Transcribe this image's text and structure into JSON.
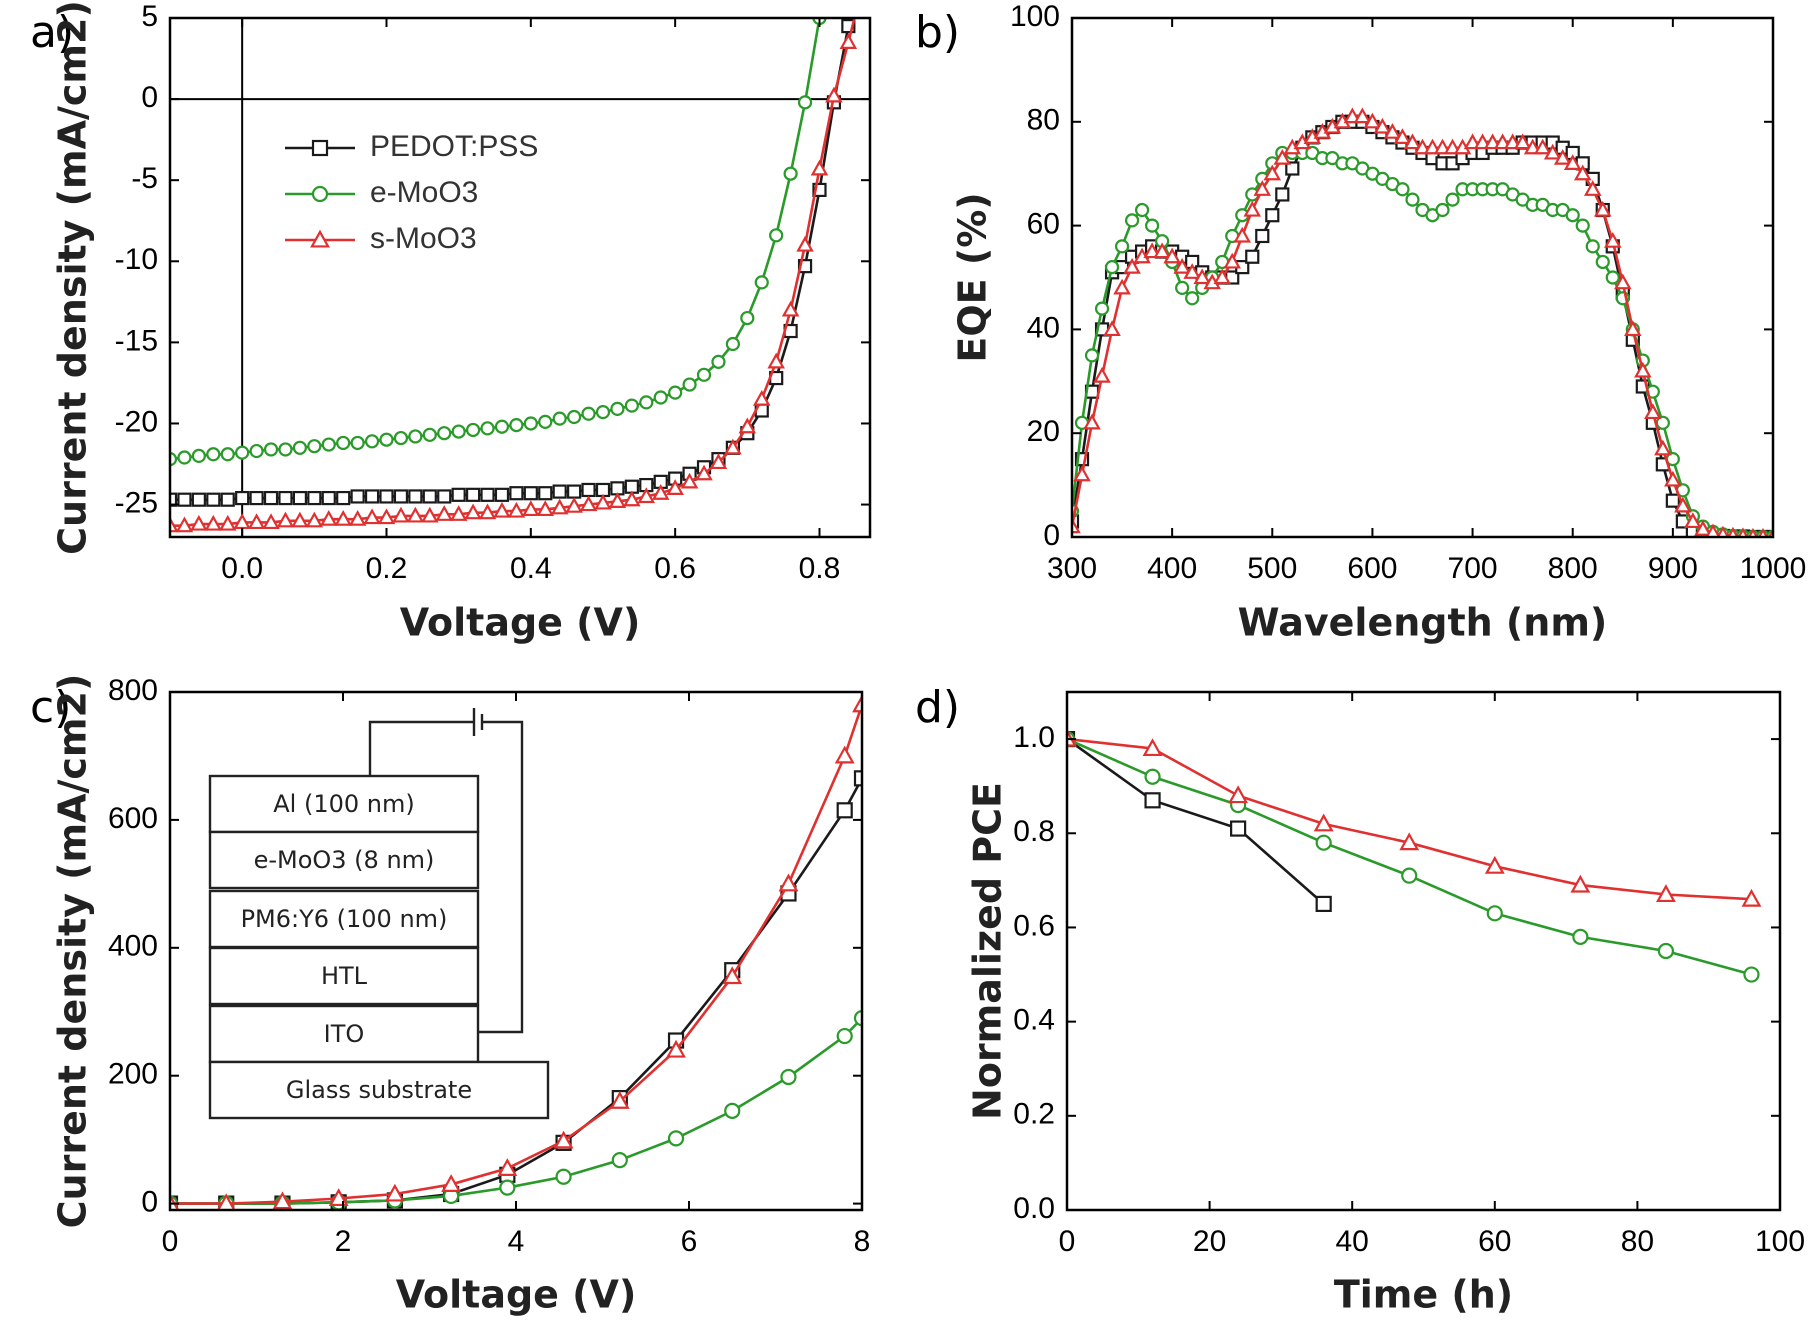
{
  "colors": {
    "black": "#1a1a1a",
    "green": "#2a9a2a",
    "red": "#e03030"
  },
  "chart_data": [
    {
      "panel": "a)",
      "type": "line",
      "xlabel": "Voltage (V)",
      "ylabel": "Current density (mA/cm2)",
      "ylabel_sup": "2",
      "xlim": [
        -0.1,
        0.87
      ],
      "ylim": [
        -27,
        5
      ],
      "xticks": [
        0.0,
        0.2,
        0.4,
        0.6,
        0.8
      ],
      "xtick_labels": [
        "0.0",
        "0.2",
        "0.4",
        "0.6",
        "0.8"
      ],
      "yticks": [
        5,
        0,
        -5,
        -10,
        -15,
        -20,
        -25
      ],
      "ytick_labels": [
        "5",
        "0",
        "-5",
        "-10",
        "-15",
        "-20",
        "-25"
      ],
      "zero_lines": true,
      "legend": {
        "placement": "upper-left"
      },
      "series": [
        {
          "name": "PEDOT:PSS",
          "color": "black",
          "marker": "square",
          "x": [
            -0.1,
            -0.08,
            -0.06,
            -0.04,
            -0.02,
            0.0,
            0.02,
            0.04,
            0.06,
            0.08,
            0.1,
            0.12,
            0.14,
            0.16,
            0.18,
            0.2,
            0.22,
            0.24,
            0.26,
            0.28,
            0.3,
            0.32,
            0.34,
            0.36,
            0.38,
            0.4,
            0.42,
            0.44,
            0.46,
            0.48,
            0.5,
            0.52,
            0.54,
            0.56,
            0.58,
            0.6,
            0.62,
            0.64,
            0.66,
            0.68,
            0.7,
            0.72,
            0.74,
            0.76,
            0.78,
            0.8,
            0.82,
            0.84,
            0.86
          ],
          "y": [
            -24.7,
            -24.7,
            -24.7,
            -24.7,
            -24.7,
            -24.6,
            -24.6,
            -24.6,
            -24.6,
            -24.6,
            -24.6,
            -24.6,
            -24.6,
            -24.5,
            -24.5,
            -24.5,
            -24.5,
            -24.5,
            -24.5,
            -24.5,
            -24.4,
            -24.4,
            -24.4,
            -24.4,
            -24.3,
            -24.3,
            -24.3,
            -24.2,
            -24.2,
            -24.1,
            -24.1,
            -24.0,
            -23.9,
            -23.8,
            -23.6,
            -23.4,
            -23.1,
            -22.7,
            -22.2,
            -21.5,
            -20.6,
            -19.2,
            -17.2,
            -14.3,
            -10.3,
            -5.6,
            -0.2,
            4.5,
            8.0
          ]
        },
        {
          "name": "e-MoO3",
          "color": "green",
          "marker": "circle",
          "x": [
            -0.1,
            -0.08,
            -0.06,
            -0.04,
            -0.02,
            0.0,
            0.02,
            0.04,
            0.06,
            0.08,
            0.1,
            0.12,
            0.14,
            0.16,
            0.18,
            0.2,
            0.22,
            0.24,
            0.26,
            0.28,
            0.3,
            0.32,
            0.34,
            0.36,
            0.38,
            0.4,
            0.42,
            0.44,
            0.46,
            0.48,
            0.5,
            0.52,
            0.54,
            0.56,
            0.58,
            0.6,
            0.62,
            0.64,
            0.66,
            0.68,
            0.7,
            0.72,
            0.74,
            0.76,
            0.78,
            0.8
          ],
          "y": [
            -22.2,
            -22.1,
            -22.0,
            -21.9,
            -21.9,
            -21.8,
            -21.7,
            -21.6,
            -21.6,
            -21.5,
            -21.4,
            -21.3,
            -21.2,
            -21.2,
            -21.1,
            -21.0,
            -20.9,
            -20.8,
            -20.7,
            -20.6,
            -20.5,
            -20.4,
            -20.3,
            -20.2,
            -20.1,
            -20.0,
            -19.9,
            -19.7,
            -19.6,
            -19.4,
            -19.3,
            -19.1,
            -18.9,
            -18.7,
            -18.4,
            -18.1,
            -17.6,
            -17.0,
            -16.2,
            -15.1,
            -13.5,
            -11.3,
            -8.4,
            -4.6,
            -0.2,
            5.0
          ]
        },
        {
          "name": "s-MoO3",
          "color": "red",
          "marker": "triangle",
          "x": [
            -0.1,
            -0.08,
            -0.06,
            -0.04,
            -0.02,
            0.0,
            0.02,
            0.04,
            0.06,
            0.08,
            0.1,
            0.12,
            0.14,
            0.16,
            0.18,
            0.2,
            0.22,
            0.24,
            0.26,
            0.28,
            0.3,
            0.32,
            0.34,
            0.36,
            0.38,
            0.4,
            0.42,
            0.44,
            0.46,
            0.48,
            0.5,
            0.52,
            0.54,
            0.56,
            0.58,
            0.6,
            0.62,
            0.64,
            0.66,
            0.68,
            0.7,
            0.72,
            0.74,
            0.76,
            0.78,
            0.8,
            0.82,
            0.84,
            0.86
          ],
          "y": [
            -26.3,
            -26.3,
            -26.2,
            -26.2,
            -26.2,
            -26.1,
            -26.1,
            -26.1,
            -26.0,
            -26.0,
            -26.0,
            -25.9,
            -25.9,
            -25.9,
            -25.8,
            -25.8,
            -25.7,
            -25.7,
            -25.7,
            -25.6,
            -25.6,
            -25.5,
            -25.5,
            -25.4,
            -25.4,
            -25.3,
            -25.3,
            -25.2,
            -25.1,
            -25.0,
            -24.9,
            -24.8,
            -24.7,
            -24.5,
            -24.3,
            -24.0,
            -23.6,
            -23.1,
            -22.4,
            -21.5,
            -20.2,
            -18.5,
            -16.2,
            -13.0,
            -9.0,
            -4.3,
            0.2,
            3.5,
            7.0
          ]
        }
      ]
    },
    {
      "panel": "b)",
      "type": "line",
      "xlabel": "Wavelength (nm)",
      "ylabel": "EQE (%)",
      "xlim": [
        300,
        1000
      ],
      "ylim": [
        0,
        100
      ],
      "xticks": [
        300,
        400,
        500,
        600,
        700,
        800,
        900,
        1000
      ],
      "xtick_labels": [
        "300",
        "400",
        "500",
        "600",
        "700",
        "800",
        "900",
        "1000"
      ],
      "yticks": [
        0,
        20,
        40,
        60,
        80,
        100
      ],
      "ytick_labels": [
        "0",
        "20",
        "40",
        "60",
        "80",
        "100"
      ],
      "series": [
        {
          "name": "PEDOT:PSS",
          "color": "black",
          "marker": "square",
          "x": [
            300,
            310,
            320,
            330,
            340,
            350,
            360,
            370,
            380,
            390,
            400,
            410,
            420,
            430,
            440,
            450,
            460,
            470,
            480,
            490,
            500,
            510,
            520,
            530,
            540,
            550,
            560,
            570,
            580,
            590,
            600,
            610,
            620,
            630,
            640,
            650,
            660,
            670,
            680,
            690,
            700,
            710,
            720,
            730,
            740,
            750,
            760,
            770,
            780,
            790,
            800,
            810,
            820,
            830,
            840,
            850,
            860,
            870,
            880,
            890,
            900,
            910,
            920,
            930,
            940,
            950,
            960,
            970,
            980,
            990,
            1000
          ],
          "y": [
            3,
            15,
            28,
            40,
            51,
            52,
            54,
            55,
            56,
            55,
            55,
            54,
            53,
            51,
            50,
            50,
            50,
            52,
            54,
            58,
            62,
            66,
            71,
            75,
            77,
            78,
            79,
            80,
            80,
            80,
            79,
            78,
            77,
            76,
            75,
            74,
            73,
            72,
            72,
            73,
            74,
            74,
            75,
            75,
            75,
            76,
            76,
            76,
            76,
            75,
            74,
            72,
            69,
            63,
            56,
            47,
            38,
            29,
            22,
            14,
            7,
            3,
            1,
            0.5,
            0.3,
            0.2,
            0.1,
            0.1,
            0,
            0,
            0
          ]
        },
        {
          "name": "e-MoO3",
          "color": "green",
          "marker": "circle",
          "x": [
            300,
            310,
            320,
            330,
            340,
            350,
            360,
            370,
            380,
            390,
            400,
            410,
            420,
            430,
            440,
            450,
            460,
            470,
            480,
            490,
            500,
            510,
            520,
            530,
            540,
            550,
            560,
            570,
            580,
            590,
            600,
            610,
            620,
            630,
            640,
            650,
            660,
            670,
            680,
            690,
            700,
            710,
            720,
            730,
            740,
            750,
            760,
            770,
            780,
            790,
            800,
            810,
            820,
            830,
            840,
            850,
            860,
            870,
            880,
            890,
            900,
            910,
            920,
            930,
            940,
            950,
            960,
            970,
            980,
            990,
            1000
          ],
          "y": [
            5,
            22,
            35,
            44,
            52,
            56,
            61,
            63,
            60,
            57,
            53,
            48,
            46,
            48,
            50,
            53,
            58,
            62,
            66,
            69,
            72,
            74,
            74,
            74,
            74,
            73,
            73,
            72,
            72,
            71,
            70,
            69,
            68,
            67,
            65,
            63,
            62,
            63,
            65,
            67,
            67,
            67,
            67,
            67,
            66,
            65,
            64,
            64,
            63,
            63,
            62,
            60,
            56,
            53,
            50,
            46,
            40,
            34,
            28,
            22,
            15,
            9,
            4,
            2,
            1,
            0.5,
            0.2,
            0.1,
            0,
            0,
            0
          ]
        },
        {
          "name": "s-MoO3",
          "color": "red",
          "marker": "triangle",
          "x": [
            300,
            310,
            320,
            330,
            340,
            350,
            360,
            370,
            380,
            390,
            400,
            410,
            420,
            430,
            440,
            450,
            460,
            470,
            480,
            490,
            500,
            510,
            520,
            530,
            540,
            550,
            560,
            570,
            580,
            590,
            600,
            610,
            620,
            630,
            640,
            650,
            660,
            670,
            680,
            690,
            700,
            710,
            720,
            730,
            740,
            750,
            760,
            770,
            780,
            790,
            800,
            810,
            820,
            830,
            840,
            850,
            860,
            870,
            880,
            890,
            900,
            910,
            920,
            930,
            940,
            950,
            960,
            970,
            980,
            990,
            1000
          ],
          "y": [
            2,
            12,
            22,
            31,
            40,
            48,
            52,
            54,
            55,
            55,
            54,
            52,
            51,
            50,
            49,
            50,
            53,
            58,
            63,
            67,
            70,
            73,
            75,
            76,
            77,
            78,
            79,
            80,
            81,
            81,
            80,
            79,
            78,
            77,
            76,
            75,
            75,
            75,
            75,
            75,
            76,
            76,
            76,
            76,
            76,
            76,
            75,
            75,
            74,
            73,
            72,
            70,
            67,
            63,
            57,
            49,
            40,
            32,
            24,
            17,
            11,
            6,
            3,
            1.5,
            0.8,
            0.4,
            0.2,
            0.1,
            0,
            0,
            0
          ]
        }
      ]
    },
    {
      "panel": "c)",
      "type": "line",
      "xlabel": "Voltage (V)",
      "ylabel": "Current density (mA/cm2)",
      "ylabel_sup": "2",
      "xlim": [
        0,
        8
      ],
      "ylim": [
        -10,
        800
      ],
      "xticks": [
        0,
        2,
        4,
        6,
        8
      ],
      "xtick_labels": [
        "0",
        "2",
        "4",
        "6",
        "8"
      ],
      "yticks": [
        0,
        200,
        400,
        600,
        800
      ],
      "ytick_labels": [
        "0",
        "200",
        "400",
        "600",
        "800"
      ],
      "device_stack": {
        "layers": [
          "Al (100 nm)",
          "e-MoO3 (8 nm)",
          "PM6:Y6 (100 nm)",
          "HTL",
          "ITO",
          "Glass substrate"
        ]
      },
      "series": [
        {
          "name": "PEDOT:PSS",
          "color": "black",
          "marker": "square",
          "x": [
            0,
            0.65,
            1.3,
            1.95,
            2.6,
            3.25,
            3.9,
            4.55,
            5.2,
            5.85,
            6.5,
            7.15,
            7.8,
            8.0
          ],
          "y": [
            0,
            0,
            0,
            2,
            5,
            15,
            45,
            95,
            165,
            255,
            365,
            485,
            615,
            665
          ]
        },
        {
          "name": "e-MoO3",
          "color": "green",
          "marker": "circle",
          "x": [
            0,
            0.65,
            1.3,
            1.95,
            2.6,
            3.25,
            3.9,
            4.55,
            5.2,
            5.85,
            6.5,
            7.15,
            7.8,
            8.0
          ],
          "y": [
            0,
            0,
            0,
            2,
            5,
            12,
            25,
            42,
            68,
            102,
            145,
            198,
            262,
            290
          ]
        },
        {
          "name": "s-MoO3",
          "color": "red",
          "marker": "triangle",
          "x": [
            0,
            0.65,
            1.3,
            1.95,
            2.6,
            3.25,
            3.9,
            4.55,
            5.2,
            5.85,
            6.5,
            7.15,
            7.8,
            8.0
          ],
          "y": [
            0,
            0,
            3,
            8,
            15,
            30,
            55,
            98,
            160,
            240,
            355,
            500,
            700,
            780
          ]
        }
      ]
    },
    {
      "panel": "d)",
      "type": "line",
      "xlabel": "Time (h)",
      "ylabel": "Normalized PCE",
      "xlim": [
        0,
        100
      ],
      "ylim": [
        0,
        1.1
      ],
      "xticks": [
        0,
        20,
        40,
        60,
        80,
        100
      ],
      "xtick_labels": [
        "0",
        "20",
        "40",
        "60",
        "80",
        "100"
      ],
      "yticks": [
        0.0,
        0.2,
        0.4,
        0.6,
        0.8,
        1.0
      ],
      "ytick_labels": [
        "0.0",
        "0.2",
        "0.4",
        "0.6",
        "0.8",
        "1.0"
      ],
      "series": [
        {
          "name": "PEDOT:PSS",
          "color": "black",
          "marker": "square",
          "x": [
            0,
            12,
            24,
            36
          ],
          "y": [
            1.0,
            0.87,
            0.81,
            0.65
          ]
        },
        {
          "name": "e-MoO3",
          "color": "green",
          "marker": "circle",
          "x": [
            0,
            12,
            24,
            36,
            48,
            60,
            72,
            84,
            96
          ],
          "y": [
            1.0,
            0.92,
            0.86,
            0.78,
            0.71,
            0.63,
            0.58,
            0.55,
            0.5
          ]
        },
        {
          "name": "s-MoO3",
          "color": "red",
          "marker": "triangle",
          "x": [
            0,
            12,
            24,
            36,
            48,
            60,
            72,
            84,
            96
          ],
          "y": [
            1.0,
            0.98,
            0.88,
            0.82,
            0.78,
            0.73,
            0.69,
            0.67,
            0.66
          ]
        }
      ]
    }
  ]
}
